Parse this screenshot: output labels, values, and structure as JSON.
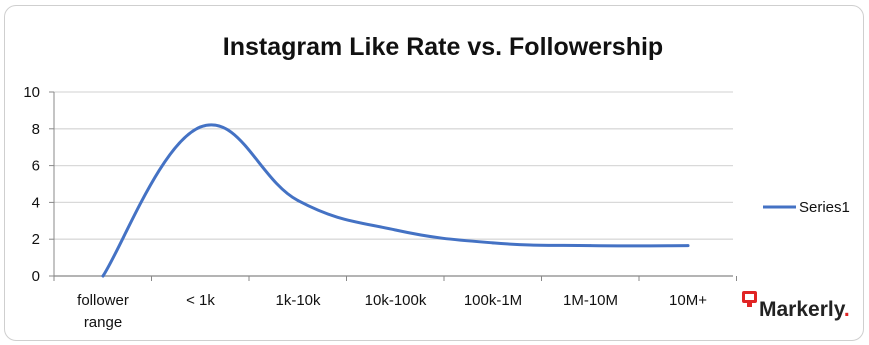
{
  "chart_data": {
    "type": "line",
    "title": "Instagram Like Rate vs. Followership",
    "categories": [
      "follower range",
      "< 1k",
      "1k-10k",
      "10k-100k",
      "100k-1M",
      "1M-10M",
      "10M+"
    ],
    "series": [
      {
        "name": "Series1",
        "values": [
          0,
          8.1,
          4.1,
          2.5,
          1.8,
          1.65,
          1.65
        ]
      }
    ],
    "ylim": [
      0,
      10
    ],
    "yticks": [
      0,
      2,
      4,
      6,
      8,
      10
    ],
    "grid": true,
    "legend": "right",
    "series_color": "#4472c4"
  },
  "brand": {
    "name": "Markerly",
    "dot": ".",
    "color": "#e02424"
  }
}
